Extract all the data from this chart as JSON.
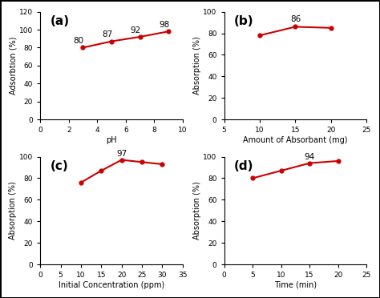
{
  "subplot_a": {
    "label": "(a)",
    "x": [
      3,
      5,
      7,
      9
    ],
    "y": [
      80,
      87,
      92,
      98
    ],
    "annotations": [
      80,
      87,
      92,
      98
    ],
    "ann_offsets": [
      [
        -0.3,
        3
      ],
      [
        -0.3,
        3
      ],
      [
        -0.3,
        3
      ],
      [
        -0.3,
        3
      ]
    ],
    "xlabel": "pH",
    "ylabel": "Adsorbtion (%)",
    "xlim": [
      0,
      10
    ],
    "ylim": [
      0,
      120
    ],
    "xticks": [
      0,
      2,
      4,
      6,
      8,
      10
    ],
    "yticks": [
      0,
      20,
      40,
      60,
      80,
      100,
      120
    ]
  },
  "subplot_b": {
    "label": "(b)",
    "x": [
      10,
      15,
      20
    ],
    "y": [
      78,
      86,
      85
    ],
    "annotations": [
      86
    ],
    "ann_x": [
      15
    ],
    "ann_y": [
      86
    ],
    "ann_offsets": [
      [
        0,
        3
      ]
    ],
    "xlabel": "Amount of Absorbant (mg)",
    "ylabel": "Absorption (%)",
    "xlim": [
      5,
      25
    ],
    "ylim": [
      0,
      100
    ],
    "xticks": [
      5,
      10,
      15,
      20,
      25
    ],
    "yticks": [
      0,
      20,
      40,
      60,
      80,
      100
    ]
  },
  "subplot_c": {
    "label": "(c)",
    "x": [
      10,
      15,
      20,
      25,
      30
    ],
    "y": [
      76,
      87,
      97,
      95,
      93
    ],
    "annotations": [
      97
    ],
    "ann_x": [
      20
    ],
    "ann_y": [
      97
    ],
    "ann_offsets": [
      [
        0,
        2
      ]
    ],
    "xlabel": "Initial Concentration (ppm)",
    "ylabel": "Absorption (%)",
    "xlim": [
      0,
      35
    ],
    "ylim": [
      0,
      100
    ],
    "xticks": [
      0,
      5,
      10,
      15,
      20,
      25,
      30,
      35
    ],
    "yticks": [
      0,
      20,
      40,
      60,
      80,
      100
    ]
  },
  "subplot_d": {
    "label": "(d)",
    "x": [
      5,
      10,
      15,
      20
    ],
    "y": [
      80,
      87,
      94,
      96
    ],
    "annotations": [
      94
    ],
    "ann_x": [
      15
    ],
    "ann_y": [
      94
    ],
    "ann_offsets": [
      [
        0,
        2
      ]
    ],
    "xlabel": "Time (min)",
    "ylabel": "Absorption (%)",
    "xlim": [
      0,
      25
    ],
    "ylim": [
      0,
      100
    ],
    "xticks": [
      0,
      5,
      10,
      15,
      20,
      25
    ],
    "yticks": [
      0,
      20,
      40,
      60,
      80,
      100
    ]
  },
  "line_color": "#cc0000",
  "marker": "o",
  "marker_size": 3.5,
  "linewidth": 1.5,
  "bg_color": "#ffffff",
  "label_fontsize": 7,
  "tick_fontsize": 6.5,
  "annotation_fontsize": 7.5,
  "subplot_label_fontsize": 11
}
